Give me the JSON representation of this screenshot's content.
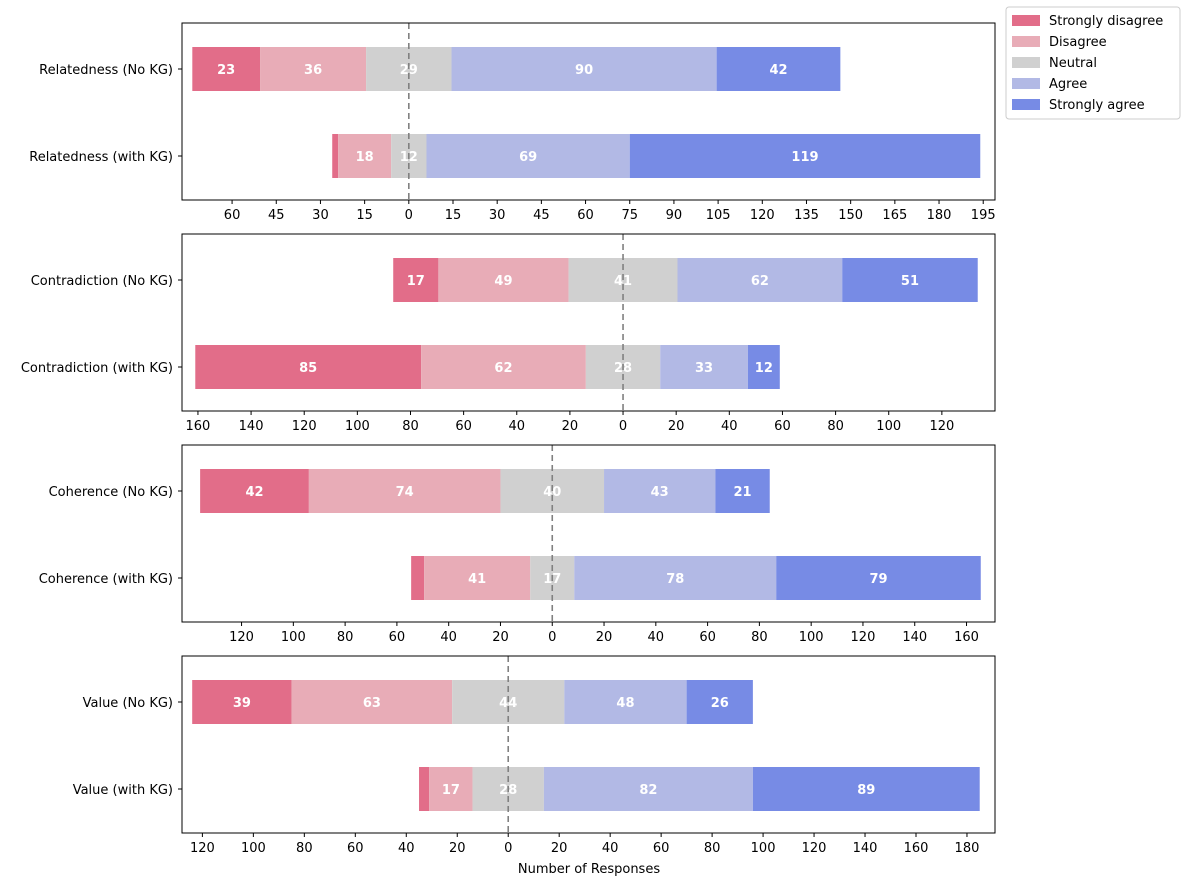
{
  "chart_data": {
    "type": "bar",
    "orientation": "horizontal",
    "stacked": "diverging",
    "xlabel": "Number of Responses",
    "legend": {
      "position": "top-right-outside",
      "entries": [
        {
          "name": "Strongly disagree",
          "color": "#e26d89"
        },
        {
          "name": "Disagree",
          "color": "#e8acb7"
        },
        {
          "name": "Neutral",
          "color": "#d0d0d0"
        },
        {
          "name": "Agree",
          "color": "#b2b9e5"
        },
        {
          "name": "Strongly agree",
          "color": "#778be5"
        }
      ]
    },
    "panels": [
      {
        "xlim": [
          -77,
          199
        ],
        "ticks": [
          -60,
          -45,
          -30,
          -15,
          0,
          15,
          30,
          45,
          60,
          75,
          90,
          105,
          120,
          135,
          150,
          165,
          180,
          195
        ],
        "tick_labels": [
          "60",
          "45",
          "30",
          "15",
          "0",
          "15",
          "30",
          "45",
          "60",
          "75",
          "90",
          "105",
          "120",
          "135",
          "150",
          "165",
          "180",
          "195"
        ],
        "rows": [
          {
            "label": "Relatedness (No KG)",
            "values": [
              23,
              36,
              29,
              90,
              42
            ],
            "value_labels": [
              "23",
              "36",
              "29",
              "90",
              "42"
            ]
          },
          {
            "label": "Relatedness (with KG)",
            "values": [
              2,
              18,
              12,
              69,
              119
            ],
            "value_labels": [
              "",
              "18",
              "12",
              "69",
              "119"
            ]
          }
        ]
      },
      {
        "xlim": [
          -166,
          140
        ],
        "ticks": [
          -160,
          -140,
          -120,
          -100,
          -80,
          -60,
          -40,
          -20,
          0,
          20,
          40,
          60,
          80,
          100,
          120
        ],
        "tick_labels": [
          "160",
          "140",
          "120",
          "100",
          "80",
          "60",
          "40",
          "20",
          "0",
          "20",
          "40",
          "60",
          "80",
          "100",
          "120"
        ],
        "rows": [
          {
            "label": "Contradiction (No KG)",
            "values": [
              17,
              49,
              41,
              62,
              51
            ],
            "value_labels": [
              "17",
              "49",
              "41",
              "62",
              "51"
            ]
          },
          {
            "label": "Contradiction (with KG)",
            "values": [
              85,
              62,
              28,
              33,
              12
            ],
            "value_labels": [
              "85",
              "62",
              "28",
              "33",
              "12"
            ]
          }
        ]
      },
      {
        "xlim": [
          -143,
          171
        ],
        "ticks": [
          -120,
          -100,
          -80,
          -60,
          -40,
          -20,
          0,
          20,
          40,
          60,
          80,
          100,
          120,
          140,
          160
        ],
        "tick_labels": [
          "120",
          "100",
          "80",
          "60",
          "40",
          "20",
          "0",
          "20",
          "40",
          "60",
          "80",
          "100",
          "120",
          "140",
          "160"
        ],
        "rows": [
          {
            "label": "Coherence (No KG)",
            "values": [
              42,
              74,
              40,
              43,
              21
            ],
            "value_labels": [
              "42",
              "74",
              "40",
              "43",
              "21"
            ]
          },
          {
            "label": "Coherence (with KG)",
            "values": [
              5,
              41,
              17,
              78,
              79
            ],
            "value_labels": [
              "",
              "41",
              "17",
              "78",
              "79"
            ]
          }
        ]
      },
      {
        "xlim": [
          -128,
          191
        ],
        "ticks": [
          -120,
          -100,
          -80,
          -60,
          -40,
          -20,
          0,
          20,
          40,
          60,
          80,
          100,
          120,
          140,
          160,
          180
        ],
        "tick_labels": [
          "120",
          "100",
          "80",
          "60",
          "40",
          "20",
          "0",
          "20",
          "40",
          "60",
          "80",
          "100",
          "120",
          "140",
          "160",
          "180"
        ],
        "rows": [
          {
            "label": "Value (No KG)",
            "values": [
              39,
              63,
              44,
              48,
              26
            ],
            "value_labels": [
              "39",
              "63",
              "44",
              "48",
              "26"
            ]
          },
          {
            "label": "Value (with KG)",
            "values": [
              4,
              17,
              28,
              82,
              89
            ],
            "value_labels": [
              "",
              "17",
              "28",
              "82",
              "89"
            ]
          }
        ]
      }
    ]
  }
}
